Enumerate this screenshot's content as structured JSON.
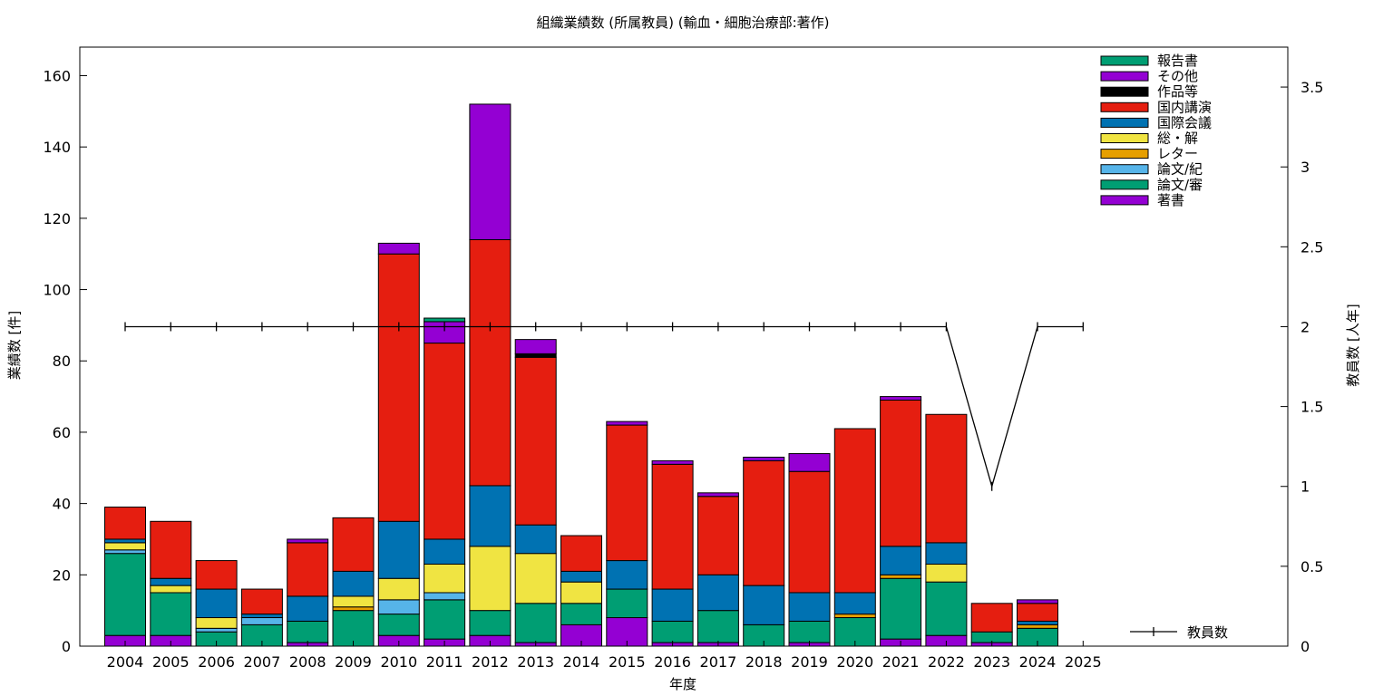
{
  "chart_data": {
    "type": "bar",
    "stacked": true,
    "title": "組織業績数 (所属教員) (輸血・細胞治療部:著作)",
    "xlabel": "年度",
    "ylabel": "業績数 [件]",
    "y2label": "教員数 [人年]",
    "ylim": [
      0,
      168
    ],
    "y2lim": [
      0,
      3.75
    ],
    "yticks": [
      "0",
      "20",
      "40",
      "60",
      "80",
      "100",
      "120",
      "140",
      "160"
    ],
    "y2ticks": [
      "0",
      "0.5",
      "1",
      "1.5",
      "2",
      "2.5",
      "3",
      "3.5"
    ],
    "categories": [
      "2004",
      "2005",
      "2006",
      "2007",
      "2008",
      "2009",
      "2010",
      "2011",
      "2012",
      "2013",
      "2014",
      "2015",
      "2016",
      "2017",
      "2018",
      "2019",
      "2020",
      "2021",
      "2022",
      "2023",
      "2024",
      "2025"
    ],
    "series": [
      {
        "name": "著書",
        "color": "#9400d3",
        "values": [
          3,
          3,
          0,
          0,
          1,
          0,
          3,
          2,
          3,
          1,
          6,
          8,
          1,
          1,
          0,
          1,
          0,
          2,
          3,
          1,
          0,
          0
        ]
      },
      {
        "name": "論文/審",
        "color": "#009e73",
        "values": [
          23,
          12,
          4,
          6,
          6,
          10,
          6,
          11,
          7,
          11,
          6,
          8,
          6,
          9,
          6,
          6,
          8,
          17,
          15,
          3,
          5,
          0
        ]
      },
      {
        "name": "論文/紀",
        "color": "#56b4e9",
        "values": [
          1,
          0,
          1,
          2,
          0,
          0,
          4,
          2,
          0,
          0,
          0,
          0,
          0,
          0,
          0,
          0,
          0,
          0,
          0,
          0,
          0,
          0
        ]
      },
      {
        "name": "レター",
        "color": "#e69f00",
        "values": [
          0,
          0,
          0,
          0,
          0,
          1,
          0,
          0,
          0,
          0,
          0,
          0,
          0,
          0,
          0,
          0,
          1,
          1,
          0,
          0,
          1,
          0
        ]
      },
      {
        "name": "総・解",
        "color": "#f0e442",
        "values": [
          2,
          2,
          3,
          0,
          0,
          3,
          6,
          8,
          18,
          14,
          6,
          0,
          0,
          0,
          0,
          0,
          0,
          0,
          5,
          0,
          0,
          0
        ]
      },
      {
        "name": "国際会議",
        "color": "#0072b2",
        "values": [
          1,
          2,
          8,
          1,
          7,
          7,
          16,
          7,
          17,
          8,
          3,
          8,
          9,
          10,
          11,
          8,
          6,
          8,
          6,
          0,
          1,
          0
        ]
      },
      {
        "name": "国内講演",
        "color": "#e51e10",
        "values": [
          9,
          16,
          8,
          7,
          15,
          15,
          75,
          55,
          69,
          47,
          10,
          38,
          35,
          22,
          35,
          34,
          46,
          41,
          36,
          8,
          5,
          0
        ]
      },
      {
        "name": "作品等",
        "color": "#000000",
        "values": [
          0,
          0,
          0,
          0,
          0,
          0,
          0,
          0,
          0,
          1,
          0,
          0,
          0,
          0,
          0,
          0,
          0,
          0,
          0,
          0,
          0,
          0
        ]
      },
      {
        "name": "その他",
        "color": "#9400d3",
        "values": [
          0,
          0,
          0,
          0,
          1,
          0,
          3,
          6,
          38,
          4,
          0,
          1,
          1,
          1,
          1,
          5,
          0,
          1,
          0,
          0,
          1,
          0
        ]
      },
      {
        "name": "報告書",
        "color": "#009e73",
        "values": [
          0,
          0,
          0,
          0,
          0,
          0,
          0,
          1,
          0,
          0,
          0,
          0,
          0,
          0,
          0,
          0,
          0,
          0,
          0,
          0,
          0,
          0
        ]
      }
    ],
    "line_series": {
      "name": "教員数",
      "color": "#000000",
      "axis": "y2",
      "values": [
        2,
        2,
        2,
        2,
        2,
        2,
        2,
        2,
        2,
        2,
        2,
        2,
        2,
        2,
        2,
        2,
        2,
        2,
        2,
        1,
        2,
        2
      ]
    },
    "grid": false,
    "legend_position": "top-right"
  }
}
